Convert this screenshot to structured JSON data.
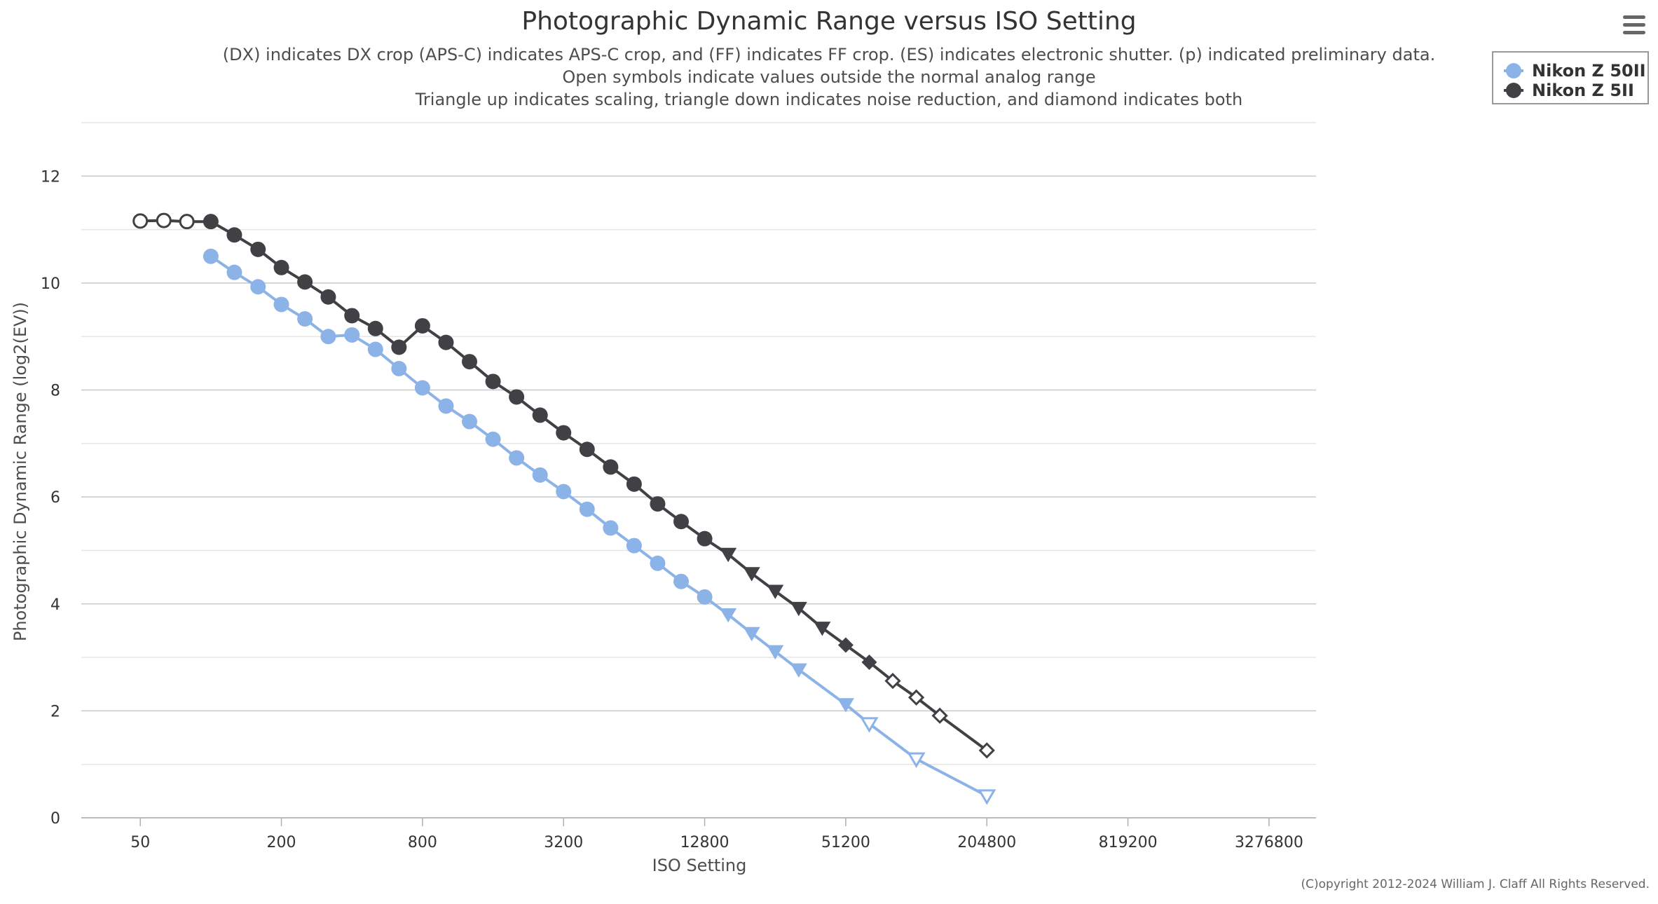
{
  "chart_data": {
    "type": "line",
    "title": "Photographic Dynamic Range versus ISO Setting",
    "subtitle_lines": [
      "(DX) indicates DX crop (APS-C) indicates APS-C crop, and (FF) indicates FF crop. (ES) indicates electronic shutter. (p) indicated preliminary data.",
      "Open symbols indicate values outside the normal analog range",
      "Triangle up indicates scaling, triangle down indicates noise reduction, and diamond indicates both"
    ],
    "xlabel": "ISO Setting",
    "ylabel": "Photographic Dynamic Range (log2(EV))",
    "x_scale": "log2",
    "xlim": [
      28,
      5200000
    ],
    "ylim": [
      0,
      13
    ],
    "x_ticks": [
      50,
      200,
      800,
      3200,
      12800,
      51200,
      204800,
      819200,
      3276800
    ],
    "x_tick_labels": [
      "50",
      "200",
      "800",
      "3200",
      "12800",
      "51200",
      "204800",
      "819200",
      "3276800"
    ],
    "y_ticks": [
      0,
      2,
      4,
      6,
      8,
      10,
      12
    ],
    "y_tick_labels": [
      "0",
      "2",
      "4",
      "6",
      "8",
      "10",
      "12"
    ],
    "grid": true,
    "legend_position": "top-right",
    "series": [
      {
        "name": "Nikon Z 50II",
        "color": "#8cb3e8",
        "points": [
          {
            "x": 100,
            "y": 10.5,
            "marker": "circle",
            "filled": true
          },
          {
            "x": 126,
            "y": 10.2,
            "marker": "circle",
            "filled": true
          },
          {
            "x": 159,
            "y": 9.93,
            "marker": "circle",
            "filled": true
          },
          {
            "x": 200,
            "y": 9.6,
            "marker": "circle",
            "filled": true
          },
          {
            "x": 252,
            "y": 9.33,
            "marker": "circle",
            "filled": true
          },
          {
            "x": 317,
            "y": 9.0,
            "marker": "circle",
            "filled": true
          },
          {
            "x": 400,
            "y": 9.03,
            "marker": "circle",
            "filled": true
          },
          {
            "x": 504,
            "y": 8.76,
            "marker": "circle",
            "filled": true
          },
          {
            "x": 635,
            "y": 8.4,
            "marker": "circle",
            "filled": true
          },
          {
            "x": 800,
            "y": 8.04,
            "marker": "circle",
            "filled": true
          },
          {
            "x": 1008,
            "y": 7.7,
            "marker": "circle",
            "filled": true
          },
          {
            "x": 1270,
            "y": 7.41,
            "marker": "circle",
            "filled": true
          },
          {
            "x": 1600,
            "y": 7.08,
            "marker": "circle",
            "filled": true
          },
          {
            "x": 2016,
            "y": 6.73,
            "marker": "circle",
            "filled": true
          },
          {
            "x": 2540,
            "y": 6.41,
            "marker": "circle",
            "filled": true
          },
          {
            "x": 3200,
            "y": 6.1,
            "marker": "circle",
            "filled": true
          },
          {
            "x": 4032,
            "y": 5.77,
            "marker": "circle",
            "filled": true
          },
          {
            "x": 5080,
            "y": 5.42,
            "marker": "circle",
            "filled": true
          },
          {
            "x": 6400,
            "y": 5.09,
            "marker": "circle",
            "filled": true
          },
          {
            "x": 8063,
            "y": 4.76,
            "marker": "circle",
            "filled": true
          },
          {
            "x": 10159,
            "y": 4.42,
            "marker": "circle",
            "filled": true
          },
          {
            "x": 12800,
            "y": 4.13,
            "marker": "circle",
            "filled": true
          },
          {
            "x": 16127,
            "y": 3.8,
            "marker": "triangle-down",
            "filled": true
          },
          {
            "x": 20319,
            "y": 3.45,
            "marker": "triangle-down",
            "filled": true
          },
          {
            "x": 25600,
            "y": 3.11,
            "marker": "triangle-down",
            "filled": true
          },
          {
            "x": 32254,
            "y": 2.77,
            "marker": "triangle-down",
            "filled": true
          },
          {
            "x": 51200,
            "y": 2.12,
            "marker": "triangle-down",
            "filled": true
          },
          {
            "x": 64508,
            "y": 1.76,
            "marker": "triangle-down",
            "filled": false
          },
          {
            "x": 102400,
            "y": 1.1,
            "marker": "triangle-down",
            "filled": false
          },
          {
            "x": 204800,
            "y": 0.41,
            "marker": "triangle-down",
            "filled": false
          }
        ]
      },
      {
        "name": "Nikon Z 5II",
        "color": "#404045",
        "points": [
          {
            "x": 50,
            "y": 11.16,
            "marker": "circle",
            "filled": false
          },
          {
            "x": 63,
            "y": 11.17,
            "marker": "circle",
            "filled": false
          },
          {
            "x": 79,
            "y": 11.15,
            "marker": "circle",
            "filled": false
          },
          {
            "x": 100,
            "y": 11.15,
            "marker": "circle",
            "filled": true
          },
          {
            "x": 126,
            "y": 10.9,
            "marker": "circle",
            "filled": true
          },
          {
            "x": 159,
            "y": 10.63,
            "marker": "circle",
            "filled": true
          },
          {
            "x": 200,
            "y": 10.29,
            "marker": "circle",
            "filled": true
          },
          {
            "x": 252,
            "y": 10.02,
            "marker": "circle",
            "filled": true
          },
          {
            "x": 317,
            "y": 9.74,
            "marker": "circle",
            "filled": true
          },
          {
            "x": 400,
            "y": 9.39,
            "marker": "circle",
            "filled": true
          },
          {
            "x": 504,
            "y": 9.15,
            "marker": "circle",
            "filled": true
          },
          {
            "x": 635,
            "y": 8.8,
            "marker": "circle",
            "filled": true
          },
          {
            "x": 800,
            "y": 9.2,
            "marker": "circle",
            "filled": true
          },
          {
            "x": 1008,
            "y": 8.89,
            "marker": "circle",
            "filled": true
          },
          {
            "x": 1270,
            "y": 8.53,
            "marker": "circle",
            "filled": true
          },
          {
            "x": 1600,
            "y": 8.16,
            "marker": "circle",
            "filled": true
          },
          {
            "x": 2016,
            "y": 7.87,
            "marker": "circle",
            "filled": true
          },
          {
            "x": 2540,
            "y": 7.53,
            "marker": "circle",
            "filled": true
          },
          {
            "x": 3200,
            "y": 7.2,
            "marker": "circle",
            "filled": true
          },
          {
            "x": 4032,
            "y": 6.89,
            "marker": "circle",
            "filled": true
          },
          {
            "x": 5080,
            "y": 6.56,
            "marker": "circle",
            "filled": true
          },
          {
            "x": 6400,
            "y": 6.24,
            "marker": "circle",
            "filled": true
          },
          {
            "x": 8063,
            "y": 5.87,
            "marker": "circle",
            "filled": true
          },
          {
            "x": 10159,
            "y": 5.54,
            "marker": "circle",
            "filled": true
          },
          {
            "x": 12800,
            "y": 5.22,
            "marker": "circle",
            "filled": true
          },
          {
            "x": 16127,
            "y": 4.93,
            "marker": "triangle-down",
            "filled": true
          },
          {
            "x": 20319,
            "y": 4.57,
            "marker": "triangle-down",
            "filled": true
          },
          {
            "x": 25600,
            "y": 4.24,
            "marker": "triangle-down",
            "filled": true
          },
          {
            "x": 32254,
            "y": 3.92,
            "marker": "triangle-down",
            "filled": true
          },
          {
            "x": 40637,
            "y": 3.55,
            "marker": "triangle-down",
            "filled": true
          },
          {
            "x": 51200,
            "y": 3.23,
            "marker": "diamond",
            "filled": true
          },
          {
            "x": 64508,
            "y": 2.91,
            "marker": "diamond",
            "filled": true
          },
          {
            "x": 81275,
            "y": 2.56,
            "marker": "diamond",
            "filled": false
          },
          {
            "x": 102400,
            "y": 2.25,
            "marker": "diamond",
            "filled": false
          },
          {
            "x": 129016,
            "y": 1.91,
            "marker": "diamond",
            "filled": false
          },
          {
            "x": 204800,
            "y": 1.26,
            "marker": "diamond",
            "filled": false
          }
        ]
      }
    ]
  },
  "credits": "(C)opyright 2012-2024 William J. Claff All Rights Reserved.",
  "menu_icon": "hamburger-menu-icon"
}
